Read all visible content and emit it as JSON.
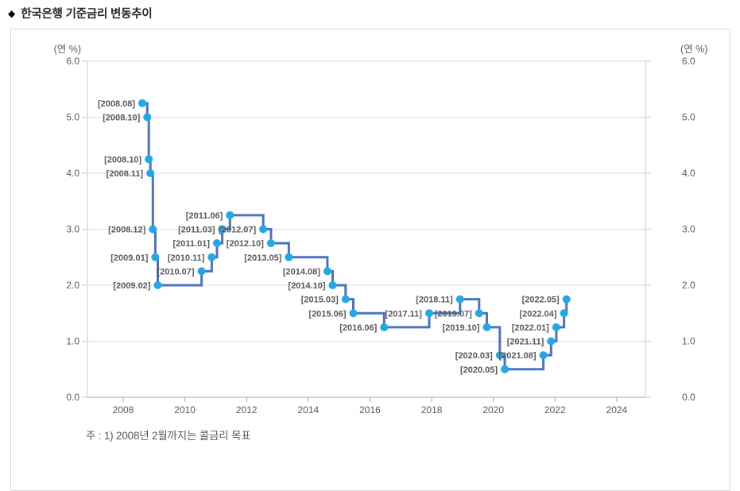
{
  "page": {
    "title_bullet": "◆",
    "title": "한국은행 기준금리 변동추이",
    "note": "주 : 1) 2008년 2월까지는 콜금리 목표"
  },
  "chart_data": {
    "type": "line",
    "step": true,
    "title": "한국은행 기준금리 변동추이",
    "unit_label_left": "(연 %)",
    "unit_label_right": "(연 %)",
    "xlim": [
      2006.84,
      2024.93
    ],
    "ylim": [
      0.0,
      6.0
    ],
    "y_ticks": [
      0.0,
      1.0,
      2.0,
      3.0,
      4.0,
      5.0,
      6.0
    ],
    "y_tick_labels": [
      "0.0",
      "1.0",
      "2.0",
      "3.0",
      "4.0",
      "5.0",
      "6.0"
    ],
    "x_ticks": [
      2008,
      2010,
      2012,
      2014,
      2016,
      2018,
      2020,
      2022,
      2024
    ],
    "grid": "horizontal",
    "legend": "none",
    "series": [
      {
        "name": "기준금리",
        "points": [
          {
            "label": "[2008.08]",
            "x": 2008.62,
            "y": 5.25
          },
          {
            "label": "[2008.10]",
            "x": 2008.78,
            "y": 5.0
          },
          {
            "label": "[2008.10]",
            "x": 2008.83,
            "y": 4.25
          },
          {
            "label": "[2008.11]",
            "x": 2008.88,
            "y": 4.0
          },
          {
            "label": "[2008.12]",
            "x": 2008.96,
            "y": 3.0
          },
          {
            "label": "[2009.01]",
            "x": 2009.04,
            "y": 2.5
          },
          {
            "label": "[2009.02]",
            "x": 2009.12,
            "y": 2.0
          },
          {
            "label": "[2010.07]",
            "x": 2010.54,
            "y": 2.25
          },
          {
            "label": "[2010.11]",
            "x": 2010.87,
            "y": 2.5
          },
          {
            "label": "[2011.01]",
            "x": 2011.04,
            "y": 2.75
          },
          {
            "label": "[2011.03]",
            "x": 2011.21,
            "y": 3.0
          },
          {
            "label": "[2011.06]",
            "x": 2011.46,
            "y": 3.25
          },
          {
            "label": "[2012.07]",
            "x": 2012.54,
            "y": 3.0
          },
          {
            "label": "[2012.10]",
            "x": 2012.79,
            "y": 2.75
          },
          {
            "label": "[2013.05]",
            "x": 2013.37,
            "y": 2.5
          },
          {
            "label": "[2014.08]",
            "x": 2014.62,
            "y": 2.25
          },
          {
            "label": "[2014.10]",
            "x": 2014.79,
            "y": 2.0
          },
          {
            "label": "[2015.03]",
            "x": 2015.21,
            "y": 1.75
          },
          {
            "label": "[2015.06]",
            "x": 2015.46,
            "y": 1.5
          },
          {
            "label": "[2016.06]",
            "x": 2016.46,
            "y": 1.25
          },
          {
            "label": "[2017.11]",
            "x": 2017.92,
            "y": 1.5
          },
          {
            "label": "[2018.11]",
            "x": 2018.92,
            "y": 1.75
          },
          {
            "label": "[2019.07]",
            "x": 2019.54,
            "y": 1.5
          },
          {
            "label": "[2019.10]",
            "x": 2019.79,
            "y": 1.25
          },
          {
            "label": "[2020.03]",
            "x": 2020.21,
            "y": 0.75
          },
          {
            "label": "[2020.05]",
            "x": 2020.37,
            "y": 0.5
          },
          {
            "label": "[2021.08]",
            "x": 2021.62,
            "y": 0.75
          },
          {
            "label": "[2021.11]",
            "x": 2021.87,
            "y": 1.0
          },
          {
            "label": "[2022.01]",
            "x": 2022.04,
            "y": 1.25
          },
          {
            "label": "[2022.04]",
            "x": 2022.29,
            "y": 1.5
          },
          {
            "label": "[2022.05]",
            "x": 2022.37,
            "y": 1.75
          }
        ]
      }
    ],
    "colors": {
      "line": "#4c72c0",
      "marker": "#22a7e8",
      "point_label": "#595959",
      "tick_label": "#595959",
      "grid": "#dcdcdc",
      "axis": "#c9c9c9",
      "baseline": "#a9a9a9",
      "title_bullet": "#4862aa",
      "panel_border": "#d9d9d9"
    }
  }
}
